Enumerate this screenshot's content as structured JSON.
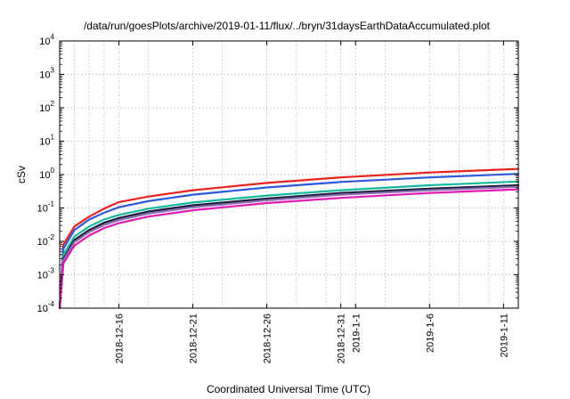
{
  "chart_data": {
    "type": "line",
    "title": "/data/run/goesPlots/archive/2019-01-11/flux/../bryn/31daysEarthDataAccumulated.plot",
    "xlabel": "Coordinated Universal Time (UTC)",
    "ylabel": "cSv",
    "yscale": "log",
    "ylim": [
      0.0001,
      10000
    ],
    "xlim": [
      "2018-12-12",
      "2019-01-12"
    ],
    "grid": true,
    "y_ticks": [
      {
        "value": 0.0001,
        "base": "10",
        "exp": "-4"
      },
      {
        "value": 0.001,
        "base": "10",
        "exp": "-3"
      },
      {
        "value": 0.01,
        "base": "10",
        "exp": "-2"
      },
      {
        "value": 0.1,
        "base": "10",
        "exp": "-1"
      },
      {
        "value": 1,
        "base": "10",
        "exp": "0"
      },
      {
        "value": 10,
        "base": "10",
        "exp": "1"
      },
      {
        "value": 100,
        "base": "10",
        "exp": "2"
      },
      {
        "value": 1000,
        "base": "10",
        "exp": "3"
      },
      {
        "value": 10000,
        "base": "10",
        "exp": "4"
      }
    ],
    "x_ticks": [
      {
        "value": "2018-12-16",
        "label": "2018-12-16"
      },
      {
        "value": "2018-12-21",
        "label": "2018-12-21"
      },
      {
        "value": "2018-12-26",
        "label": "2018-12-26"
      },
      {
        "value": "2018-12-31",
        "label": "2018-12-31"
      },
      {
        "value": "2019-01-01",
        "label": "2019-1-1"
      },
      {
        "value": "2019-01-06",
        "label": "2019-1-6"
      },
      {
        "value": "2019-01-11",
        "label": "2019-1-11"
      }
    ],
    "x_grid": [
      "2018-12-13",
      "2018-12-14",
      "2018-12-15",
      "2018-12-16",
      "2018-12-18",
      "2018-12-21",
      "2018-12-23",
      "2018-12-26",
      "2018-12-28",
      "2018-12-30",
      "2018-12-31",
      "2019-01-01",
      "2019-01-03",
      "2019-01-06",
      "2019-01-08",
      "2019-01-10",
      "2019-01-11"
    ],
    "series_x": [
      "2018-12-12",
      "2018-12-12 06:00",
      "2018-12-13",
      "2018-12-14",
      "2018-12-15",
      "2018-12-16",
      "2018-12-18",
      "2018-12-21",
      "2018-12-26",
      "2018-12-31",
      "2019-01-06",
      "2019-01-12"
    ],
    "series": [
      {
        "color": "#e8231d",
        "values": [
          0.0001,
          0.008,
          0.028,
          0.055,
          0.095,
          0.15,
          0.22,
          0.34,
          0.56,
          0.82,
          1.15,
          1.48
        ]
      },
      {
        "color": "#2b59d9",
        "values": [
          0.0001,
          0.006,
          0.022,
          0.045,
          0.072,
          0.105,
          0.16,
          0.25,
          0.41,
          0.6,
          0.82,
          1.05
        ]
      },
      {
        "color": "#18b89e",
        "values": [
          0.0001,
          0.004,
          0.014,
          0.028,
          0.045,
          0.062,
          0.095,
          0.145,
          0.235,
          0.34,
          0.48,
          0.62
        ]
      },
      {
        "color": "#1a1a3a",
        "values": [
          0.0001,
          0.003,
          0.011,
          0.022,
          0.036,
          0.05,
          0.078,
          0.12,
          0.19,
          0.28,
          0.38,
          0.48
        ]
      },
      {
        "color": "#8a6fb0",
        "values": [
          0.0001,
          0.0027,
          0.0095,
          0.019,
          0.031,
          0.043,
          0.068,
          0.105,
          0.17,
          0.25,
          0.34,
          0.43
        ]
      },
      {
        "color": "#e21ab4",
        "values": [
          0.0001,
          0.0022,
          0.0075,
          0.015,
          0.025,
          0.035,
          0.055,
          0.085,
          0.14,
          0.2,
          0.28,
          0.36
        ]
      }
    ]
  }
}
